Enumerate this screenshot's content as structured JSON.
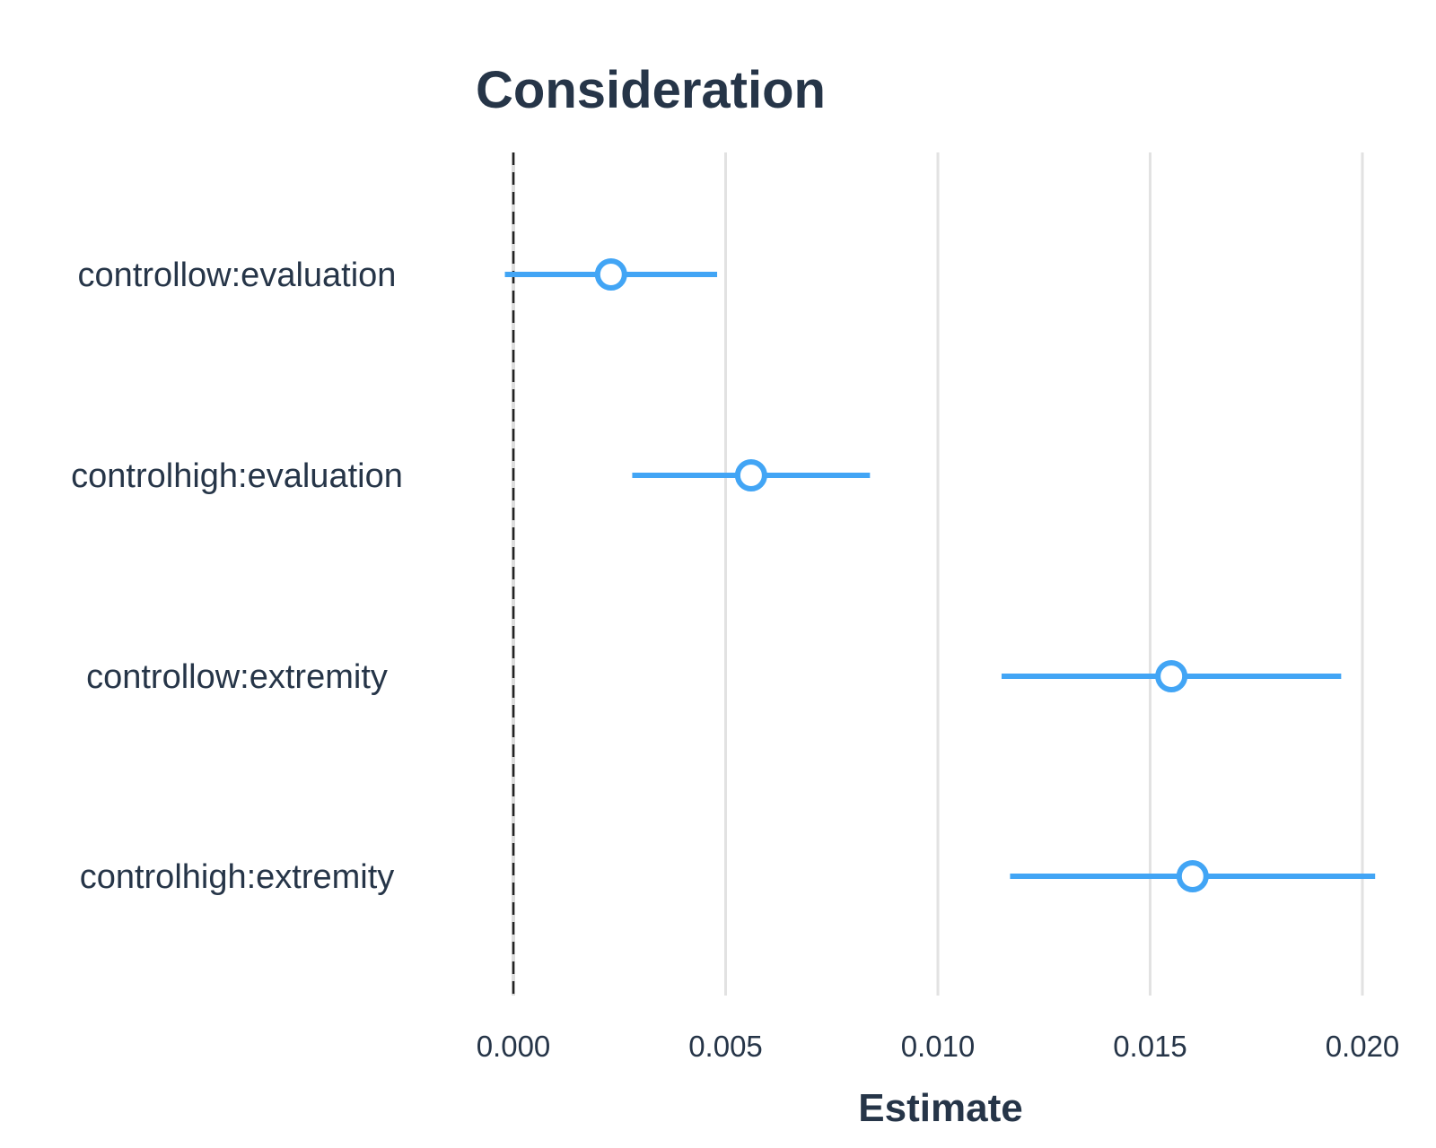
{
  "chart_data": {
    "type": "scatter",
    "title": "Consideration",
    "xlabel": "Estimate",
    "ylabel": "",
    "xlim": [
      -0.0002,
      0.0205
    ],
    "x_ticks": [
      0.0,
      0.005,
      0.01,
      0.015,
      0.02
    ],
    "x_tick_labels": [
      "0.000",
      "0.005",
      "0.010",
      "0.015",
      "0.020"
    ],
    "grid": "vertical",
    "reference_line": 0.0,
    "categories": [
      "controllow:evaluation",
      "controlhigh:evaluation",
      "controllow:extremity",
      "controlhigh:extremity"
    ],
    "series": [
      {
        "estimate": [
          0.0023,
          0.0056,
          0.0155,
          0.016
        ],
        "lower": [
          -0.0002,
          0.0028,
          0.0115,
          0.0117
        ],
        "upper": [
          0.0048,
          0.0084,
          0.0195,
          0.0203
        ]
      }
    ],
    "colors": {
      "point": "#42a5f5",
      "grid": "#e2e2e2",
      "text": "#263548",
      "refline": "#222222"
    }
  }
}
